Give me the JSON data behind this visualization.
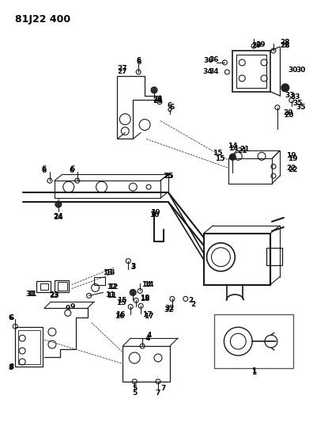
{
  "title": "81J22 400",
  "bg_color": "#ffffff",
  "lc": "#1a1a1a",
  "fig_width": 3.96,
  "fig_height": 5.33,
  "dpi": 100
}
